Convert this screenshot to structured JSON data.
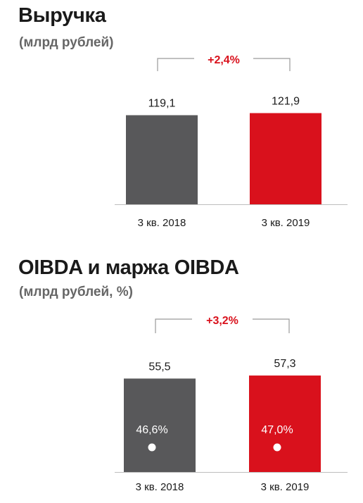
{
  "charts": [
    {
      "title": "Выручка",
      "subtitle": "(млрд рублей)",
      "change_label": "+2,4%"
    },
    {
      "title": "OIBDA и маржа OIBDA",
      "subtitle": "(млрд рублей, %)",
      "change_label": "+3,2%"
    }
  ],
  "colors": {
    "bar_2018": "#58585a",
    "bar_2019": "#d9111c",
    "change": "#d9111c",
    "margin_dot": "#ffffff",
    "axis": "#bdbdbd"
  },
  "chart_data": [
    {
      "type": "bar",
      "title": "Выручка",
      "ylabel": "(млрд рублей)",
      "categories": [
        "3 кв. 2018",
        "3 кв. 2019"
      ],
      "values": [
        119.1,
        121.9
      ],
      "value_labels": [
        "119,1",
        "121,9"
      ],
      "change": "+2,4%",
      "ylim": [
        0,
        130
      ]
    },
    {
      "type": "bar",
      "title": "OIBDA и маржа OIBDA",
      "ylabel": "(млрд рублей, %)",
      "categories": [
        "3 кв. 2018",
        "3 кв. 2019"
      ],
      "values": [
        55.5,
        57.3
      ],
      "value_labels": [
        "55,5",
        "57,3"
      ],
      "margin_values": [
        46.6,
        47.0
      ],
      "margin_labels": [
        "46,6%",
        "47,0%"
      ],
      "change": "+3,2%",
      "ylim": [
        0,
        65
      ]
    }
  ]
}
